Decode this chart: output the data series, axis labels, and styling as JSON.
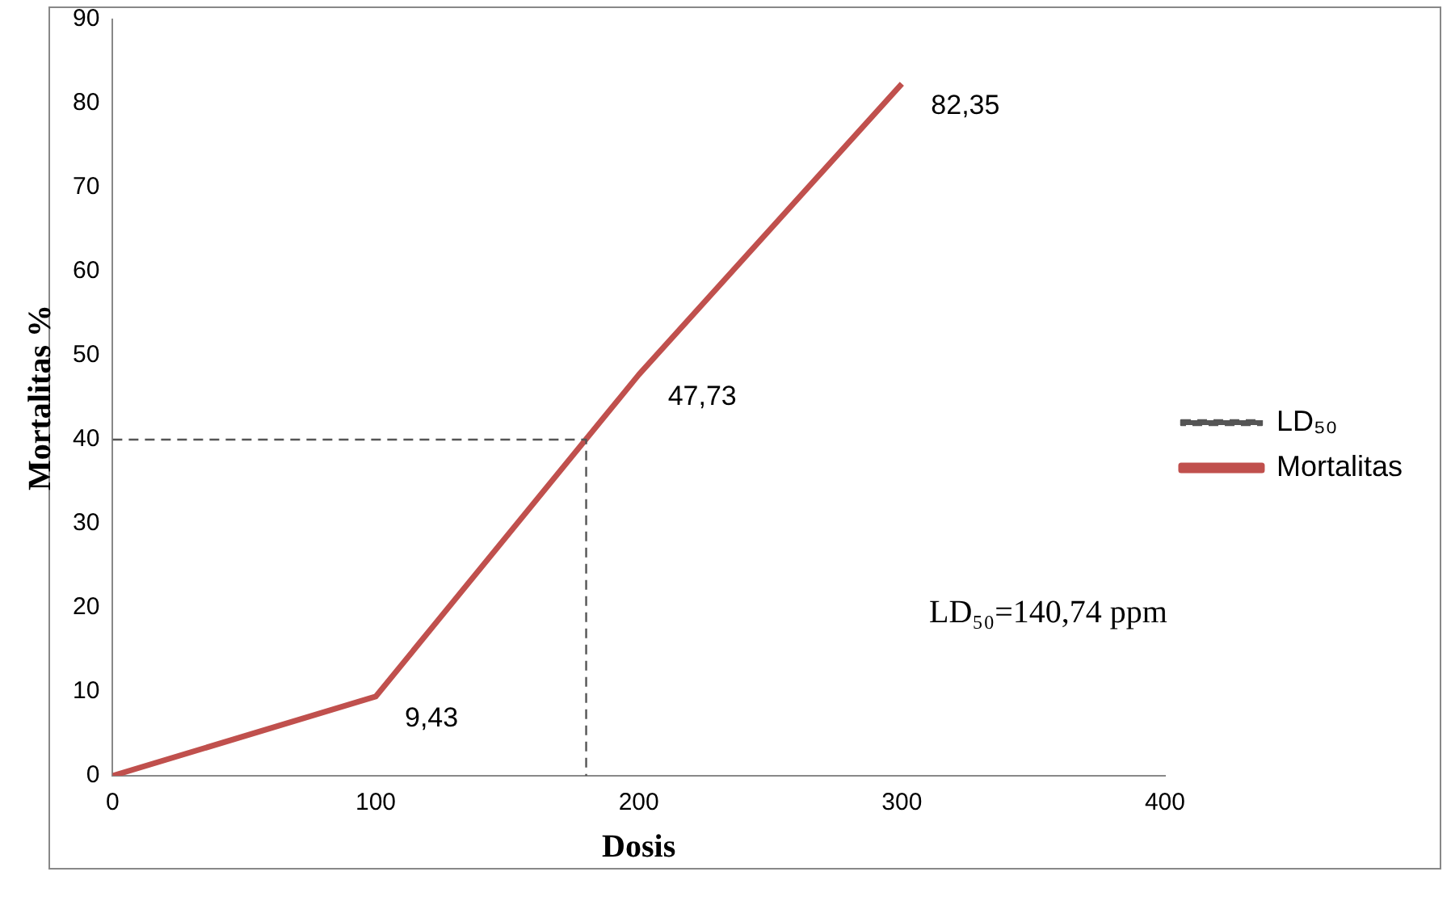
{
  "chart_data": {
    "type": "line",
    "xlabel": "Dosis",
    "ylabel": "Mortalitas %",
    "xlim": [
      0,
      400
    ],
    "xticks": [
      0,
      100,
      200,
      300,
      400
    ],
    "ylim": [
      0,
      90
    ],
    "yticks": [
      0,
      10,
      20,
      30,
      40,
      50,
      60,
      70,
      80,
      90
    ],
    "grid": false,
    "legend": "right",
    "marker": "none",
    "series": [
      {
        "name": "LD₅₀",
        "color": "#555555",
        "line_style": "dashed",
        "x": [
          0,
          180,
          180
        ],
        "values": [
          40,
          40,
          0
        ]
      },
      {
        "name": "Mortalitas",
        "color": "#c0504d",
        "line_style": "solid",
        "x": [
          0,
          100,
          200,
          300
        ],
        "values": [
          0,
          9.43,
          47.73,
          82.35
        ],
        "value_labels": [
          null,
          "9,43",
          "47,73",
          "82,35"
        ]
      }
    ],
    "annotations": [
      "LD₅₀=140,74 ppm"
    ]
  }
}
